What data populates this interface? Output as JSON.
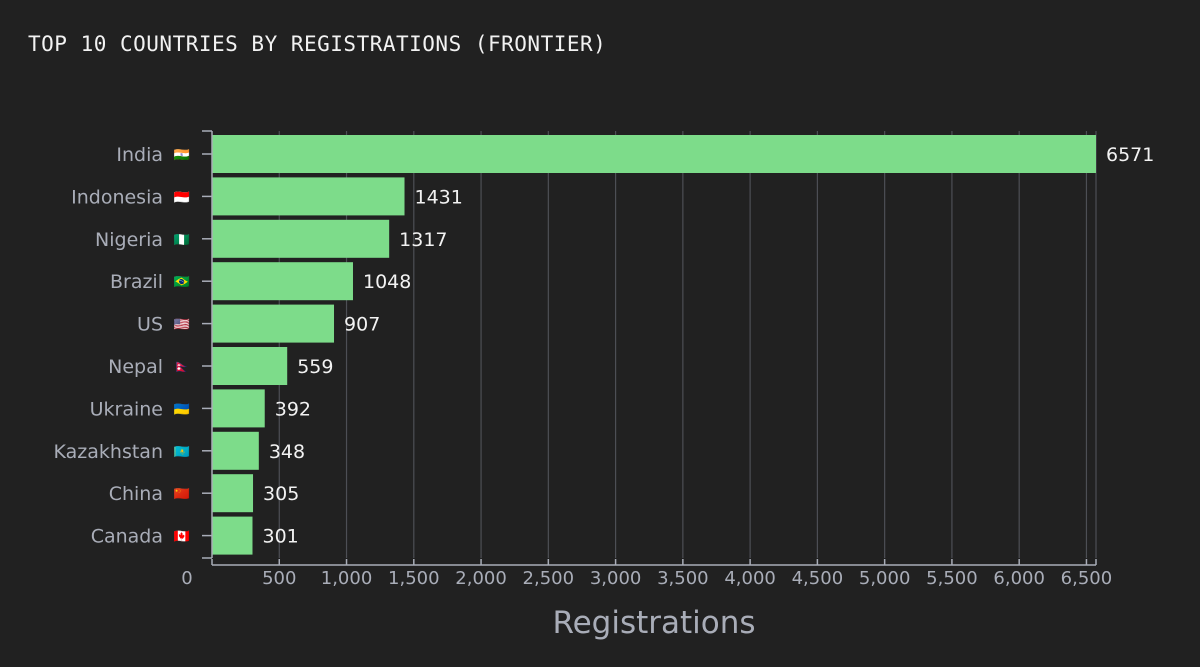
{
  "chart_title": "TOP 10 COUNTRIES BY REGISTRATIONS (FRONTIER)",
  "chart_data": {
    "type": "bar",
    "orientation": "horizontal",
    "title": "TOP 10 COUNTRIES BY REGISTRATIONS (FRONTIER)",
    "xlabel": "Registrations",
    "ylabel": "",
    "categories": [
      "India",
      "Indonesia",
      "Nigeria",
      "Brazil",
      "US",
      "Nepal",
      "Ukraine",
      "Kazakhstan",
      "China",
      "Canada"
    ],
    "flags": [
      "🇮🇳",
      "🇮🇩",
      "🇳🇬",
      "🇧🇷",
      "🇺🇸",
      "🇳🇵",
      "🇺🇦",
      "🇰🇿",
      "🇨🇳",
      "🇨🇦"
    ],
    "values": [
      6571,
      1431,
      1317,
      1048,
      907,
      559,
      392,
      348,
      305,
      301
    ],
    "xlim": [
      0,
      6571
    ],
    "xticks": [
      0,
      500,
      1000,
      1500,
      2000,
      2500,
      3000,
      3500,
      4000,
      4500,
      5000,
      5500,
      6000,
      6500
    ],
    "xtick_labels": [
      "0",
      "500",
      "1,000",
      "1,500",
      "2,000",
      "2,500",
      "3,000",
      "3,500",
      "4,000",
      "4,500",
      "5,000",
      "5,500",
      "6,000",
      "6,500"
    ],
    "grid": "vertical",
    "legend": "none",
    "colors": {
      "bar": "#7ddc8a",
      "background": "#212121",
      "grid": "#4d4f55",
      "axis": "#a9adb8",
      "text": "#a9adb8",
      "title": "#f2f2f2"
    }
  }
}
